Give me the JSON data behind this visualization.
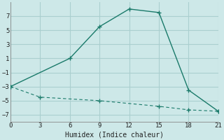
{
  "xlabel": "Humidex (Indice chaleur)",
  "bg_color": "#cde8e8",
  "grid_color": "#aacfcf",
  "line_color": "#1a7a6a",
  "line1_x": [
    0,
    6,
    9,
    12,
    15,
    18,
    21
  ],
  "line1_y": [
    -3,
    1,
    5.5,
    8,
    7.5,
    -3.5,
    -6.5
  ],
  "line2_x": [
    0,
    3,
    9,
    15,
    18,
    21
  ],
  "line2_y": [
    -3,
    -4.5,
    -5.0,
    -5.8,
    -6.3,
    -6.5
  ],
  "xlim": [
    0,
    21
  ],
  "ylim": [
    -8,
    9
  ],
  "xticks": [
    0,
    3,
    6,
    9,
    12,
    15,
    18,
    21
  ],
  "yticks": [
    -7,
    -5,
    -3,
    -1,
    1,
    3,
    5,
    7
  ],
  "xlabel_fontsize": 7,
  "tick_fontsize": 6.5
}
